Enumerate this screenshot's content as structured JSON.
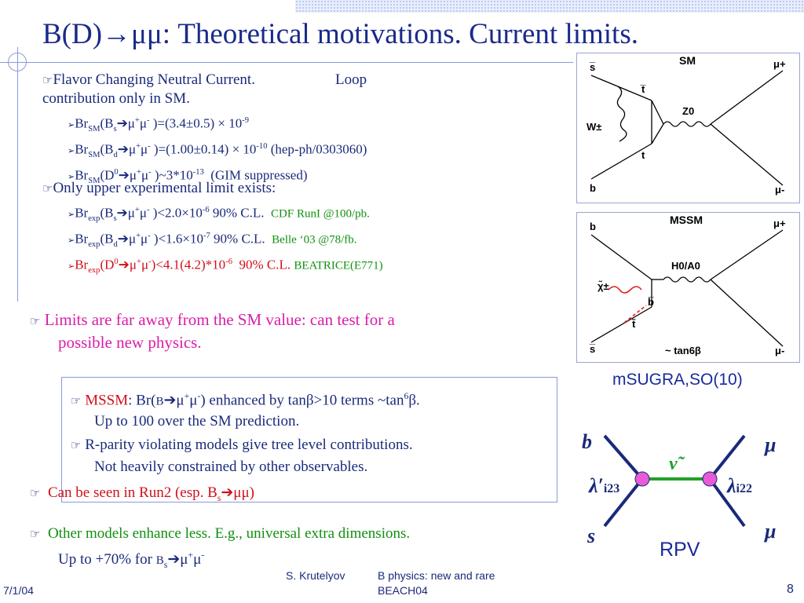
{
  "title": "B(D)→μμ: Theoretical motivations. Current limits.",
  "bullets": {
    "fcnc_line1": "Flavor Changing Neutral Current.",
    "fcnc_loop": "Loop",
    "fcnc_line2": "contribution only in SM.",
    "sm_bs": "Br_SM(B_s→μ+μ- )=(3.4±0.5) × 10^-9",
    "sm_bd": "Br_SM(B_d→μ+μ- )=(1.00±0.14) × 10^-10 (hep-ph/0303060)",
    "sm_d0": "Br_SM(D0→μ+μ- )~3*10^-13 (GIM suppressed)",
    "upper_limit": "Only upper experimental limit exists:",
    "exp_bs": "Br_exp(B_s→μ+μ- )<2.0×10^-6 90% C.L.",
    "exp_bs_src": "CDF RunI @100/pb.",
    "exp_bd": "Br_exp(B_d→μ+μ- )<1.6×10^-7 90% C.L.",
    "exp_bd_src": "Belle ‘03 @78/fb.",
    "exp_d0": "Br_exp(D0→μ+μ-)<4.1(4.2)*10^-6 90% C.L.",
    "exp_d0_src": "BEATRICE(E771)",
    "limits_far": "Limits are far away from the SM value: can test for a",
    "limits_far2": "possible new physics.",
    "mssm_label": "MSSM",
    "mssm_text": ": Br(B→μ+μ-) enhanced by tanβ>10 terms ~tan6β.",
    "mssm_text2": "Up to 100 over the SM prediction.",
    "rpv_text": "R-parity violating models give tree level contributions.",
    "rpv_text2": "Not heavily constrained by other observables.",
    "run2": "Can be seen in Run2 (esp. B_s→μμ)",
    "other": "Other models enhance less. E.g., universal extra dimensions.",
    "other2": "Up to +70% for B_s→μ+μ-"
  },
  "diagrams": {
    "sm": {
      "label": "SM",
      "b": "b",
      "s": "s̅",
      "mup": "μ+",
      "mum": "μ-",
      "W": "W±",
      "tbar": "t̅",
      "t": "t",
      "Z": "Z0"
    },
    "mssm": {
      "label": "MSSM",
      "b": "b",
      "bbar": "b̅",
      "s": "s̅",
      "mup": "μ+",
      "mum": "μ-",
      "chi": "χ̃±",
      "ttilde": "t̃",
      "H": "H0/A0",
      "tan": "~ tan6β"
    },
    "msugra": "mSUGRA,SO(10)",
    "rpv": {
      "b": "b",
      "s": "s",
      "mu1": "μ",
      "mu2": "μ",
      "nu": "ν̃",
      "lp": "λ′",
      "lp_sub": "i23",
      "l": "λ",
      "l_sub": "i22",
      "label": "RPV"
    }
  },
  "footer": {
    "date": "7/1/04",
    "author": "S. Krutelyov",
    "talk": "B physics: new and rare",
    "conf": "BEACH04",
    "page": "8"
  },
  "colors": {
    "text": "#1a2a7a",
    "red": "#d0101a",
    "green": "#109010",
    "magenta": "#d81ea8"
  }
}
